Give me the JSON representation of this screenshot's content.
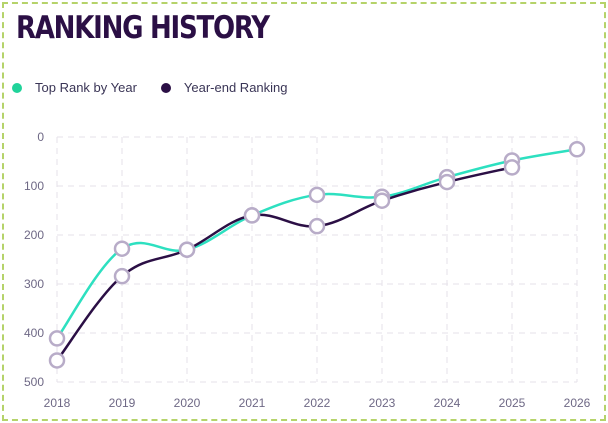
{
  "title": "RANKING HISTORY",
  "colors": {
    "series_top": "#2de0c0",
    "series_yearend": "#2b0f45",
    "marker_stroke": "#b8acc8",
    "grid": "#e6e2ea",
    "title": "#2b0f45",
    "card_border": "#b5d36a"
  },
  "legend": [
    {
      "label": "Top Rank by Year",
      "color": "#20d39a"
    },
    {
      "label": "Year-end Ranking",
      "color": "#2b0f45"
    }
  ],
  "chart_data": {
    "type": "line",
    "title": "RANKING HISTORY",
    "xlabel": "",
    "ylabel": "",
    "x_ticks": [
      "2018",
      "2019",
      "2020",
      "2021",
      "2022",
      "2023",
      "2024",
      "2025",
      "2026"
    ],
    "y_ticks": [
      "0",
      "100",
      "200",
      "300",
      "400",
      "500"
    ],
    "xlim": [
      2018,
      2026
    ],
    "ylim": [
      0,
      500
    ],
    "y_inverted": true,
    "grid": true,
    "legend_position": "top-left",
    "series": [
      {
        "name": "Top Rank by Year",
        "color": "#2de0c0",
        "x": [
          2018,
          2019,
          2020,
          2021,
          2022,
          2023,
          2024,
          2025,
          2026
        ],
        "y": [
          411,
          228,
          230,
          160,
          118,
          122,
          82,
          48,
          25
        ]
      },
      {
        "name": "Year-end Ranking",
        "color": "#2b0f45",
        "x": [
          2018,
          2019,
          2020,
          2021,
          2022,
          2023,
          2024,
          2025
        ],
        "y": [
          456,
          284,
          230,
          160,
          182,
          130,
          92,
          62
        ]
      }
    ]
  }
}
